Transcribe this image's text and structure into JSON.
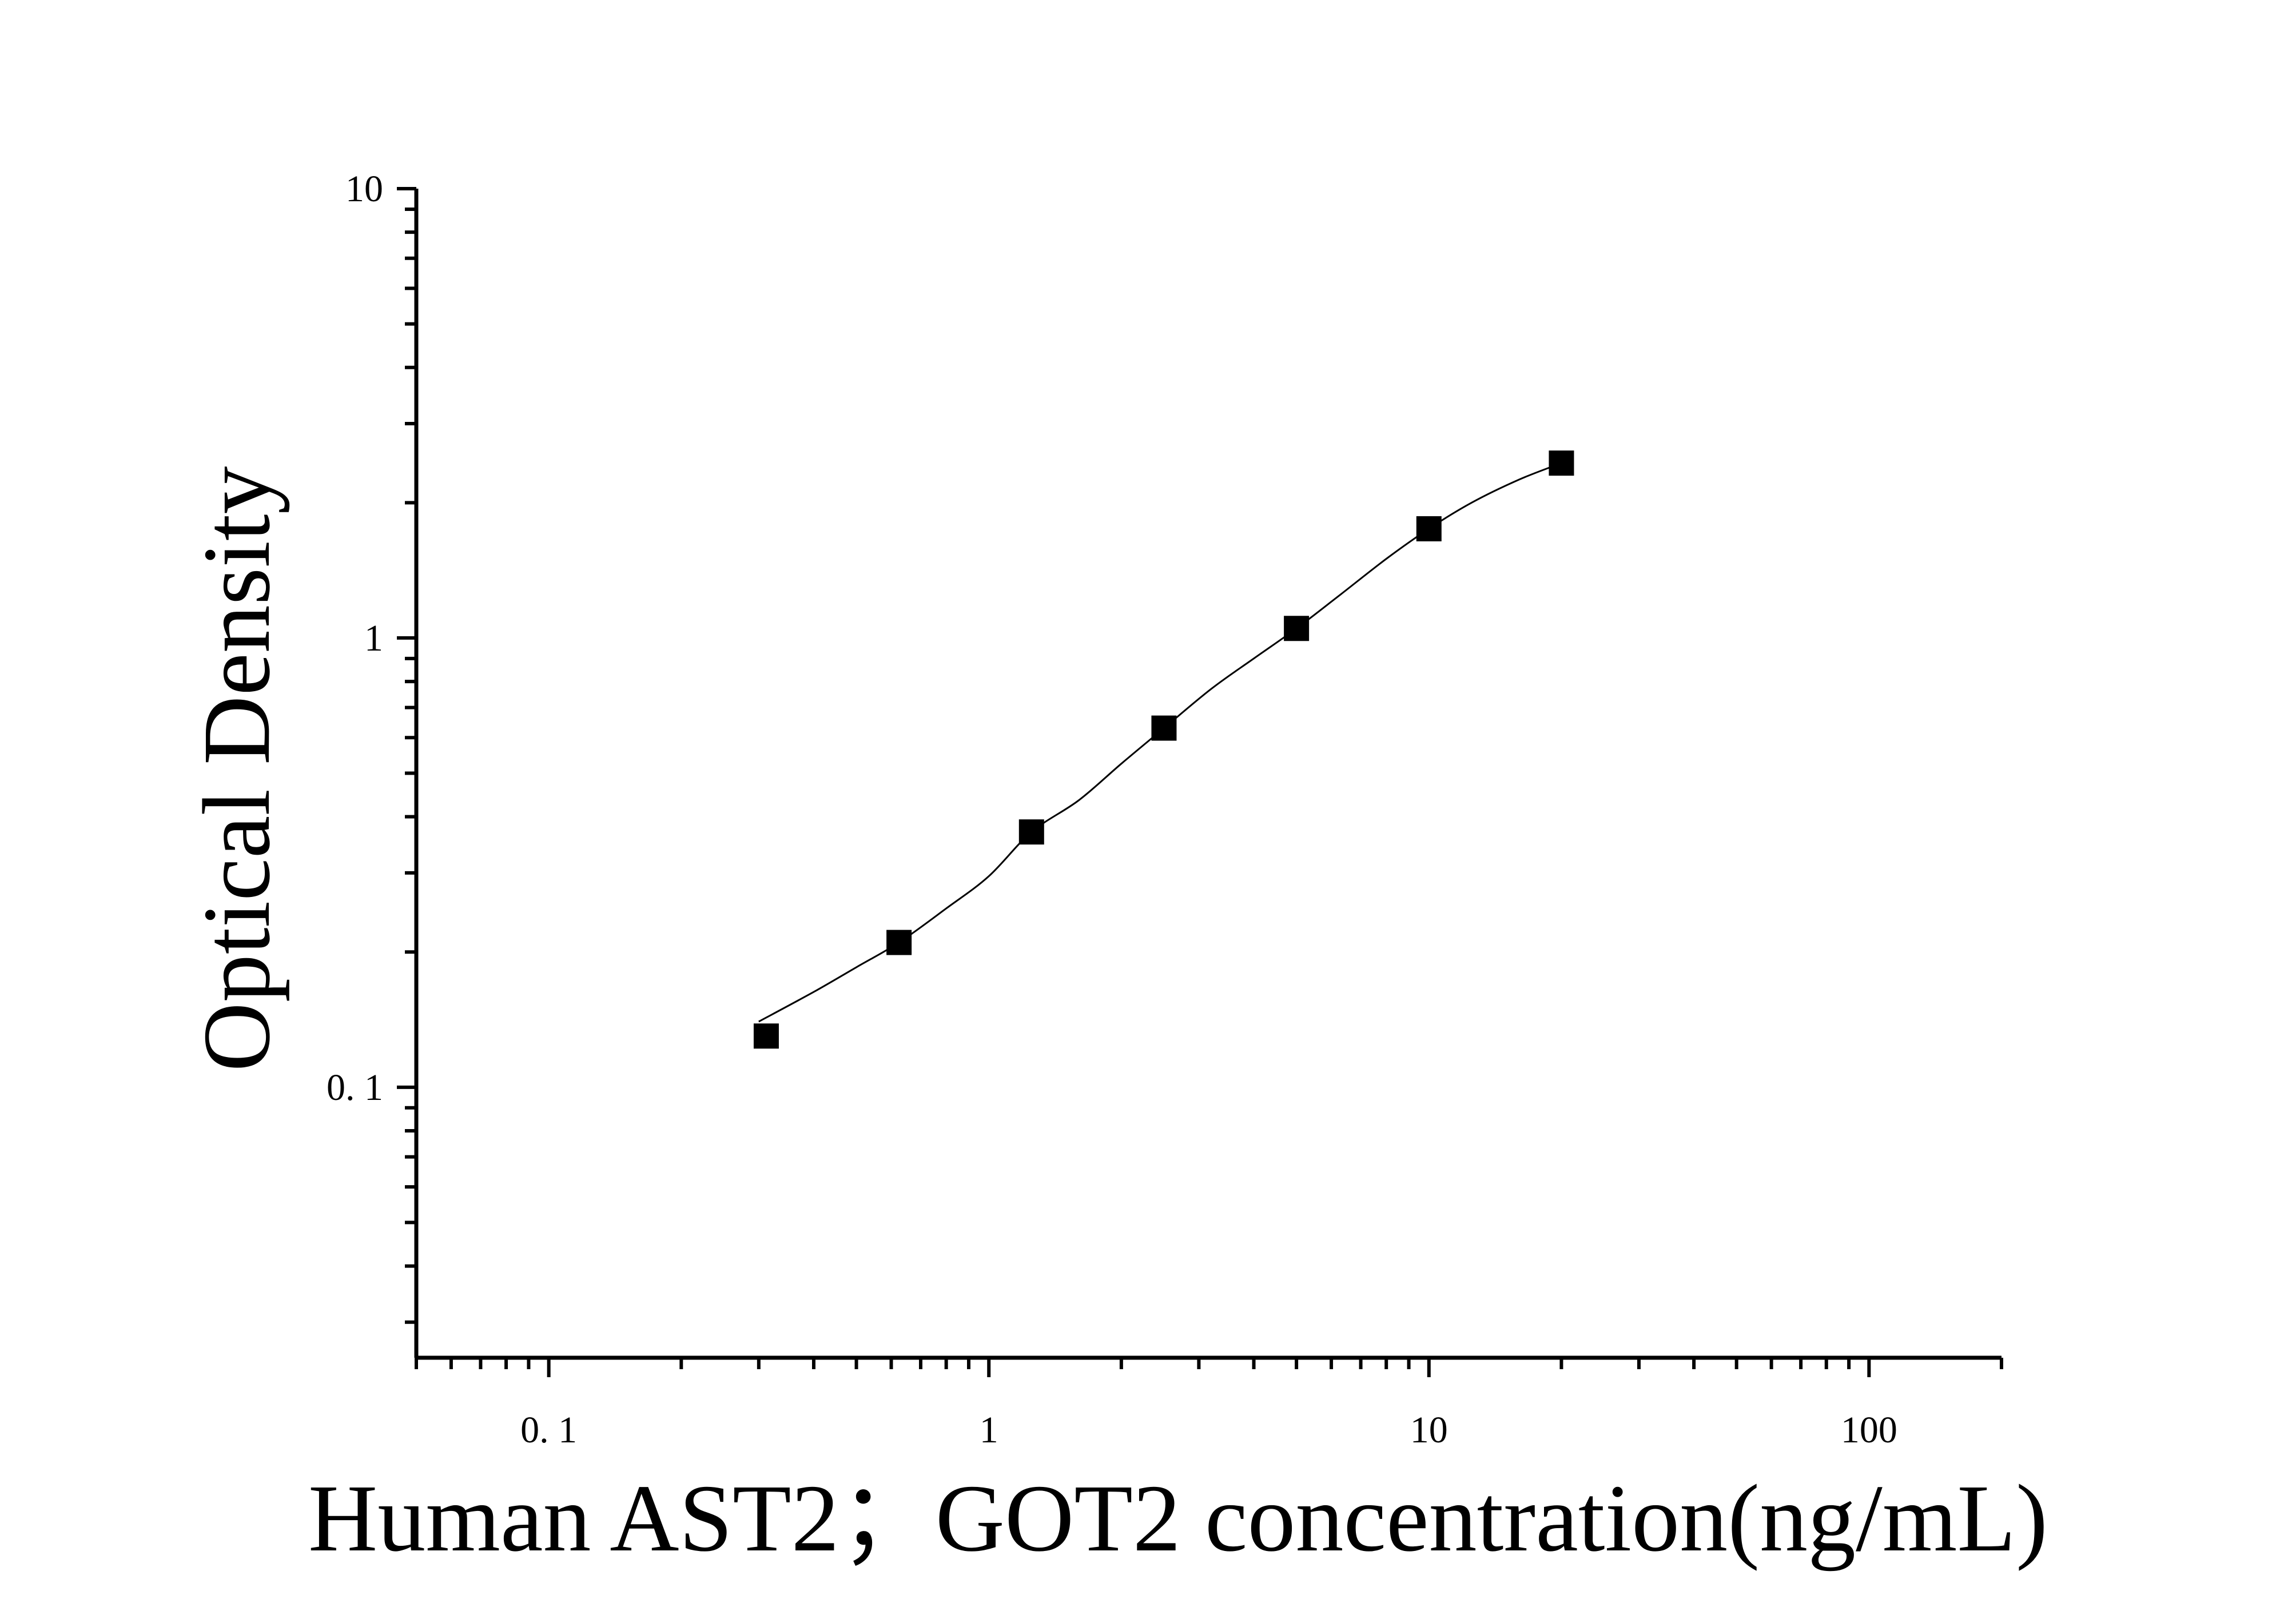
{
  "chart_data": {
    "type": "scatter",
    "title": "",
    "xlabel": "Human AST2；GOT2 concentration(ng/mL)",
    "ylabel": "Optical Density",
    "x_scale": "log",
    "y_scale": "log",
    "xlim": [
      0.05,
      200
    ],
    "ylim": [
      0.025,
      10
    ],
    "x_ticks": [
      {
        "value": 0.1,
        "label": "0. 1"
      },
      {
        "value": 1,
        "label": "1"
      },
      {
        "value": 10,
        "label": "10"
      },
      {
        "value": 100,
        "label": "100"
      }
    ],
    "y_ticks": [
      {
        "value": 0.1,
        "label": "0. 1"
      },
      {
        "value": 1,
        "label": "1"
      },
      {
        "value": 10,
        "label": "10"
      }
    ],
    "grid": false,
    "legend": "none",
    "marker": "square",
    "color": "#000000",
    "series": [
      {
        "x": [
          0.312,
          0.625,
          1.25,
          2.5,
          5,
          10,
          20
        ],
        "y": [
          0.13,
          0.21,
          0.37,
          0.63,
          1.05,
          1.75,
          2.45
        ]
      }
    ],
    "fit_curve": {
      "type": "line",
      "x": [
        0.3,
        0.4,
        0.5,
        0.625,
        0.8,
        1.0,
        1.25,
        1.6,
        2.0,
        2.5,
        3.2,
        4.0,
        5.0,
        6.3,
        8.0,
        10,
        12.5,
        16,
        20
      ],
      "y": [
        0.14,
        0.163,
        0.185,
        0.21,
        0.25,
        0.295,
        0.37,
        0.435,
        0.525,
        0.63,
        0.77,
        0.9,
        1.05,
        1.25,
        1.5,
        1.75,
        2.0,
        2.25,
        2.45
      ]
    }
  }
}
